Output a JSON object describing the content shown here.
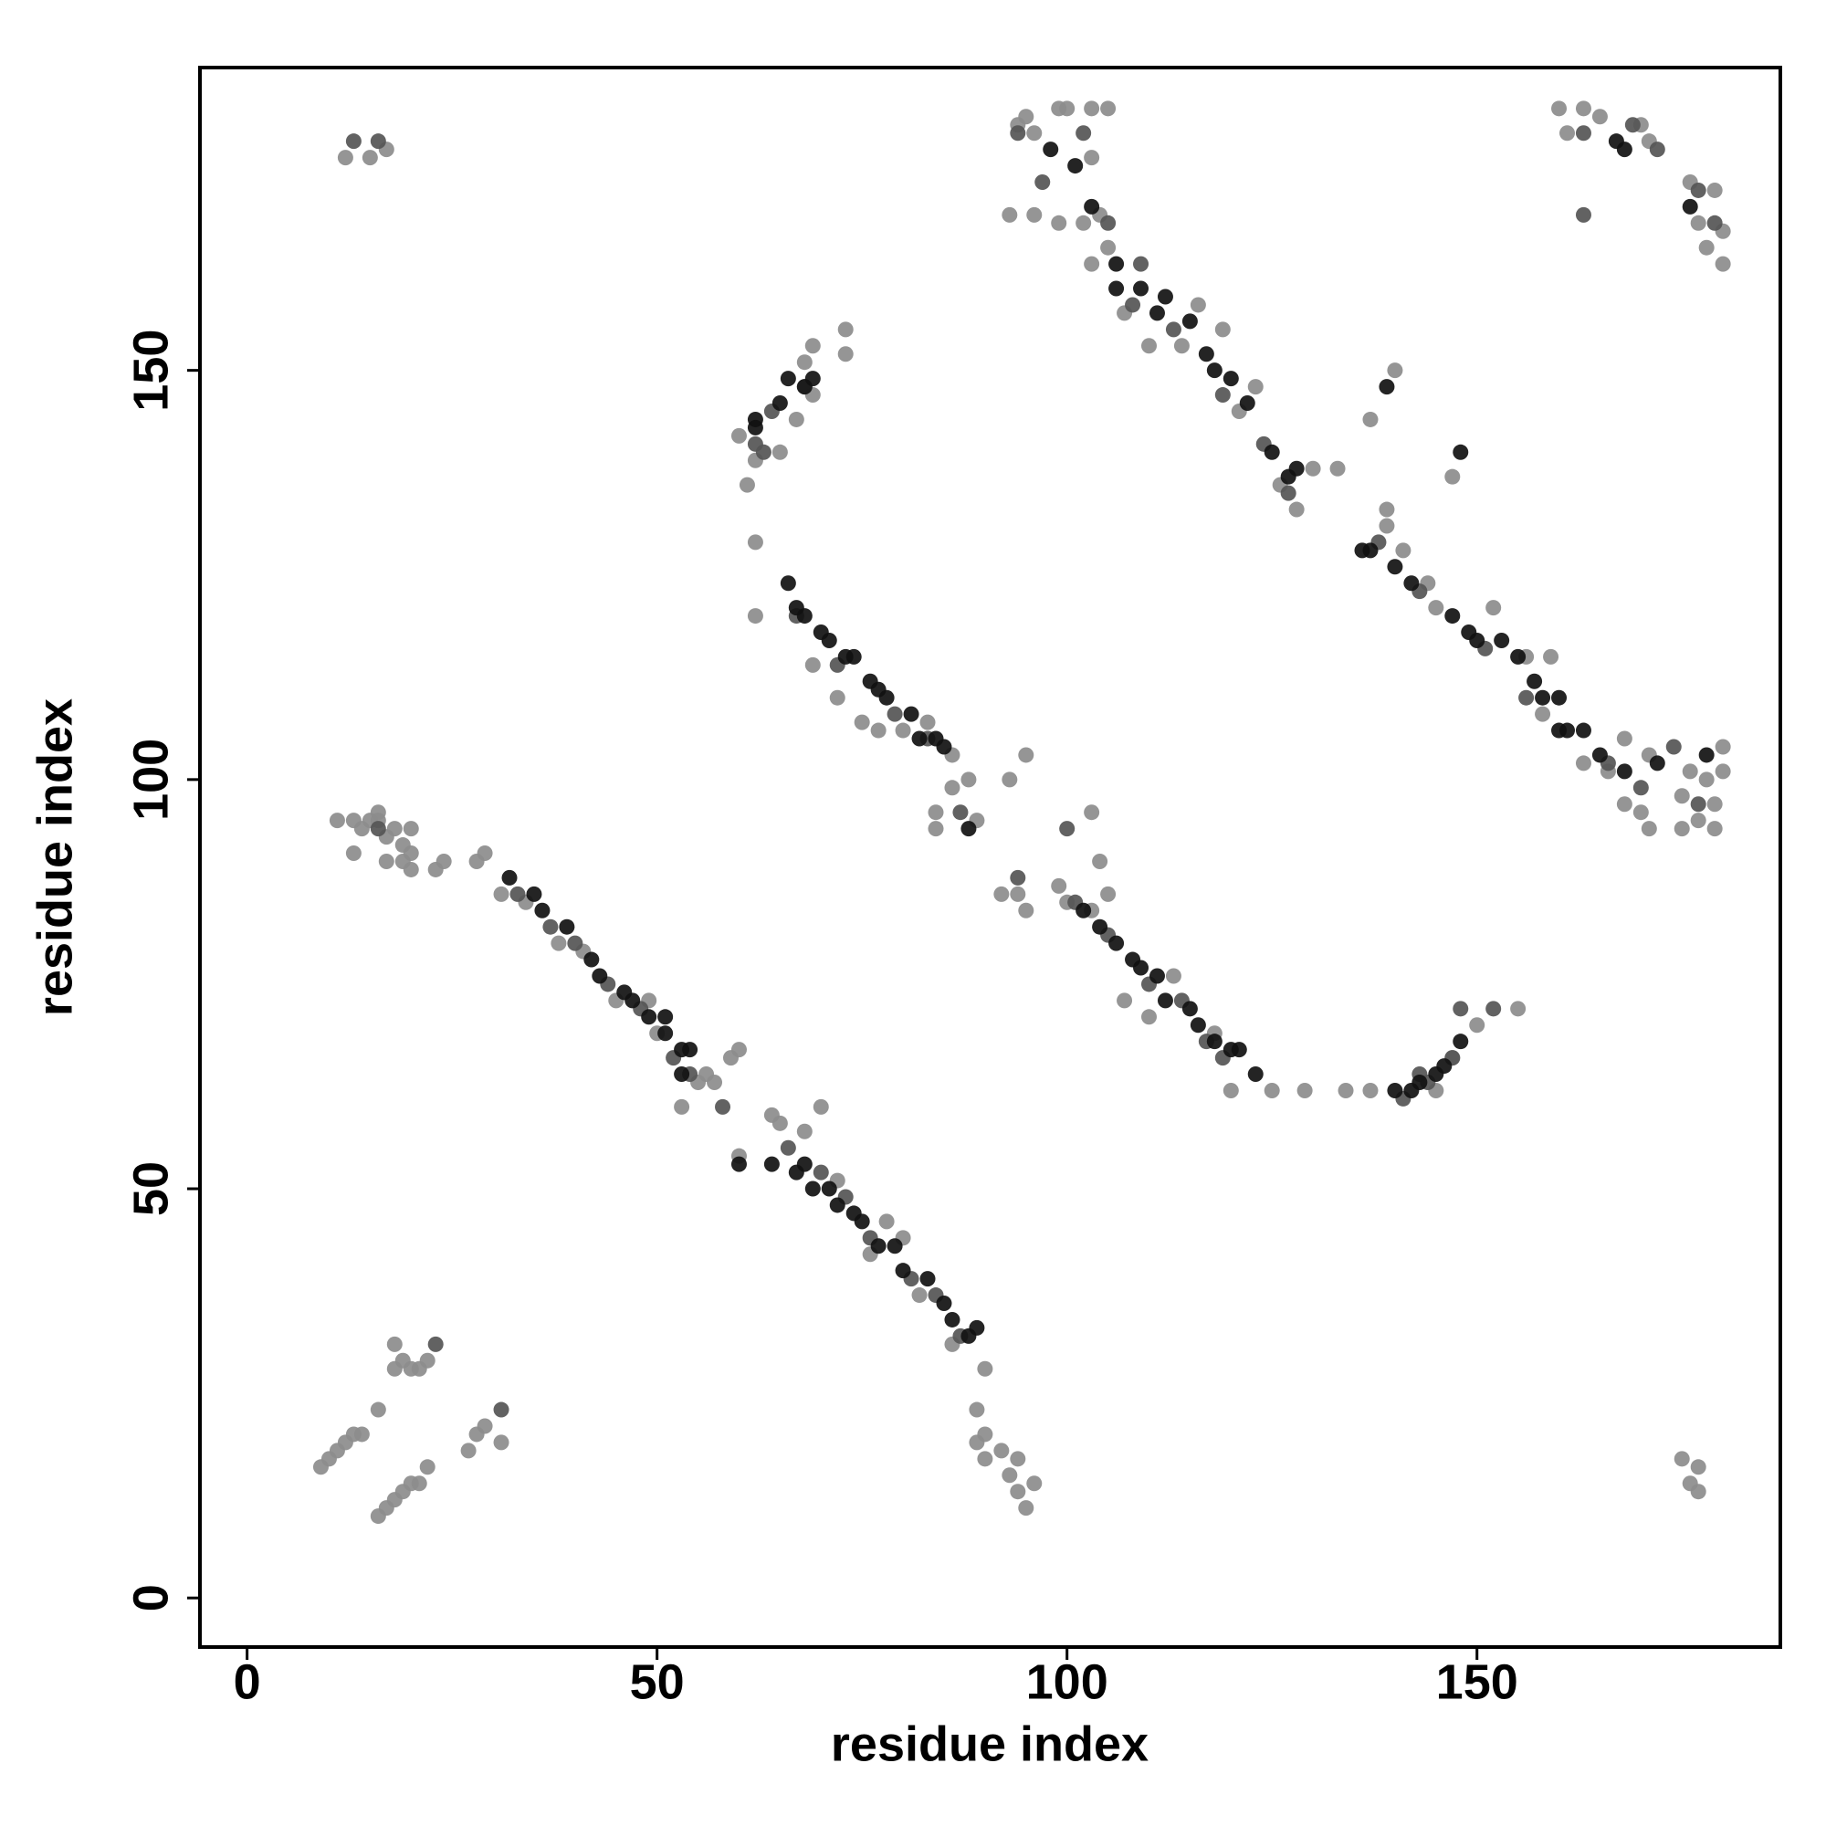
{
  "chart_data": {
    "type": "scatter",
    "xlabel": "residue index",
    "ylabel": "residue index",
    "xlim": [
      -5.75,
      187
    ],
    "ylim": [
      -6,
      187
    ],
    "xticks": [
      0,
      50,
      100,
      150
    ],
    "yticks": [
      0,
      50,
      100,
      150
    ],
    "grid": false,
    "series": [
      {
        "color": "#8c8c8c",
        "x": [
          13,
          11,
          14,
          16,
          17,
          19,
          20,
          19,
          17,
          13,
          20,
          23,
          28,
          29,
          31,
          34,
          38,
          41,
          45,
          49,
          50,
          55,
          56,
          57,
          59,
          60,
          53,
          60,
          64,
          65,
          68,
          70,
          72,
          76,
          78,
          80,
          82,
          86,
          90,
          89,
          89,
          90,
          92,
          93,
          94,
          95,
          96,
          94,
          90,
          16,
          17,
          18,
          19,
          20,
          21,
          22,
          9,
          10,
          11,
          12,
          13,
          14,
          16,
          18,
          18,
          19,
          20,
          21,
          22,
          27,
          28,
          29,
          31,
          12,
          15,
          17,
          24,
          175,
          176,
          177,
          177,
          62,
          62,
          65,
          67,
          69,
          68,
          69,
          73,
          73,
          60,
          61,
          62,
          69,
          72,
          75,
          77,
          80,
          83,
          86,
          86,
          88,
          89,
          84,
          84,
          93,
          95,
          94,
          95,
          92,
          99,
          100,
          103,
          104,
          103,
          105,
          107,
          110,
          113,
          118,
          120,
          125,
          129,
          134,
          137,
          145,
          147,
          150,
          155,
          93,
          96,
          99,
          102,
          104,
          105,
          103,
          107,
          110,
          114,
          116,
          119,
          121,
          123,
          126,
          128,
          130,
          133,
          137,
          139,
          139,
          141,
          144,
          145,
          147,
          152,
          156,
          158,
          159,
          163,
          166,
          168,
          170,
          171,
          168,
          171,
          175,
          175,
          177,
          178,
          180,
          180,
          179,
          179,
          176,
          94,
          95,
          96,
          99,
          100,
          103,
          105,
          103,
          160,
          161,
          163,
          165,
          170,
          171,
          176,
          177,
          178,
          180,
          180,
          179,
          15,
          16,
          18,
          20,
          140,
          68
        ],
        "values": [
          95,
          95,
          94,
          95,
          93,
          92,
          91,
          90,
          90,
          91,
          89,
          89,
          90,
          91,
          86,
          85,
          80,
          79,
          73,
          73,
          69,
          63,
          64,
          63,
          66,
          67,
          60,
          54,
          59,
          58,
          57,
          60,
          51,
          42,
          46,
          44,
          37,
          31,
          28,
          23,
          19,
          17,
          18,
          15,
          13,
          11,
          14,
          17,
          20,
          10,
          11,
          12,
          13,
          14,
          14,
          16,
          16,
          17,
          18,
          19,
          20,
          20,
          23,
          28,
          31,
          29,
          28,
          28,
          29,
          18,
          20,
          21,
          19,
          176,
          176,
          177,
          90,
          17,
          14,
          16,
          13,
          129,
          120,
          140,
          144,
          147,
          151,
          153,
          152,
          155,
          142,
          136,
          139,
          114,
          110,
          107,
          106,
          106,
          107,
          103,
          99,
          100,
          95,
          96,
          94,
          100,
          103,
          86,
          84,
          86,
          87,
          85,
          84,
          90,
          96,
          86,
          73,
          71,
          76,
          69,
          62,
          62,
          62,
          62,
          62,
          62,
          66,
          70,
          72,
          169,
          169,
          168,
          168,
          169,
          165,
          163,
          157,
          153,
          153,
          158,
          155,
          145,
          148,
          136,
          133,
          138,
          138,
          144,
          131,
          133,
          128,
          124,
          121,
          137,
          121,
          115,
          108,
          115,
          102,
          101,
          97,
          96,
          94,
          105,
          103,
          98,
          94,
          95,
          100,
          101,
          104,
          97,
          94,
          101,
          180,
          181,
          179,
          182,
          182,
          182,
          182,
          176,
          182,
          179,
          182,
          181,
          180,
          178,
          173,
          168,
          165,
          163,
          167,
          172,
          95,
          96,
          94,
          94,
          150,
          148
        ]
      },
      {
        "color": "#555555",
        "x": [
          33,
          37,
          40,
          44,
          48,
          52,
          54,
          58,
          66,
          70,
          73,
          76,
          81,
          84,
          87,
          62,
          63,
          64,
          67,
          72,
          79,
          83,
          87,
          94,
          101,
          105,
          110,
          114,
          117,
          119,
          141,
          144,
          147,
          108,
          113,
          119,
          124,
          127,
          138,
          143,
          151,
          156,
          166,
          170,
          174,
          177,
          94,
          97,
          102,
          105,
          163,
          169,
          172,
          177,
          179,
          23,
          31,
          16,
          13,
          16,
          163,
          152,
          148,
          143,
          109,
          100
        ],
        "values": [
          86,
          82,
          80,
          75,
          72,
          66,
          64,
          60,
          55,
          52,
          49,
          44,
          39,
          37,
          32,
          141,
          140,
          145,
          120,
          114,
          108,
          105,
          96,
          88,
          85,
          81,
          75,
          73,
          68,
          66,
          61,
          63,
          66,
          158,
          155,
          147,
          141,
          135,
          129,
          123,
          116,
          110,
          102,
          99,
          104,
          97,
          179,
          173,
          179,
          168,
          179,
          180,
          177,
          172,
          168,
          31,
          23,
          94,
          178,
          178,
          169,
          72,
          72,
          64,
          163,
          94
        ]
      },
      {
        "color": "#111111",
        "x": [
          32,
          35,
          36,
          39,
          42,
          43,
          46,
          47,
          49,
          51,
          53,
          54,
          53,
          68,
          69,
          71,
          72,
          74,
          75,
          77,
          79,
          80,
          83,
          85,
          86,
          88,
          89,
          60,
          64,
          67,
          66,
          67,
          68,
          70,
          71,
          73,
          74,
          76,
          77,
          78,
          81,
          82,
          84,
          85,
          88,
          102,
          104,
          106,
          108,
          109,
          111,
          112,
          115,
          116,
          118,
          120,
          121,
          123,
          140,
          142,
          143,
          145,
          146,
          148,
          62,
          62,
          65,
          66,
          68,
          69,
          106,
          106,
          109,
          111,
          112,
          115,
          117,
          118,
          120,
          122,
          125,
          127,
          128,
          136,
          137,
          140,
          142,
          147,
          149,
          150,
          153,
          155,
          157,
          158,
          160,
          160,
          161,
          163,
          165,
          168,
          172,
          178,
          98,
          101,
          103,
          167,
          168,
          176,
          148,
          139,
          51
        ],
        "values": [
          88,
          86,
          84,
          82,
          78,
          76,
          74,
          73,
          71,
          69,
          67,
          67,
          64,
          53,
          50,
          50,
          48,
          47,
          46,
          43,
          43,
          40,
          39,
          36,
          34,
          32,
          33,
          53,
          53,
          52,
          124,
          121,
          120,
          118,
          117,
          115,
          115,
          112,
          111,
          110,
          108,
          105,
          105,
          104,
          94,
          84,
          82,
          80,
          78,
          77,
          76,
          73,
          72,
          70,
          68,
          67,
          67,
          64,
          62,
          62,
          63,
          64,
          65,
          68,
          143,
          144,
          146,
          149,
          148,
          149,
          163,
          160,
          160,
          157,
          159,
          156,
          152,
          150,
          149,
          146,
          140,
          137,
          138,
          128,
          128,
          126,
          124,
          120,
          118,
          117,
          117,
          115,
          112,
          110,
          110,
          106,
          106,
          106,
          103,
          101,
          102,
          103,
          177,
          175,
          170,
          178,
          177,
          170,
          140,
          148,
          71
        ]
      }
    ]
  }
}
